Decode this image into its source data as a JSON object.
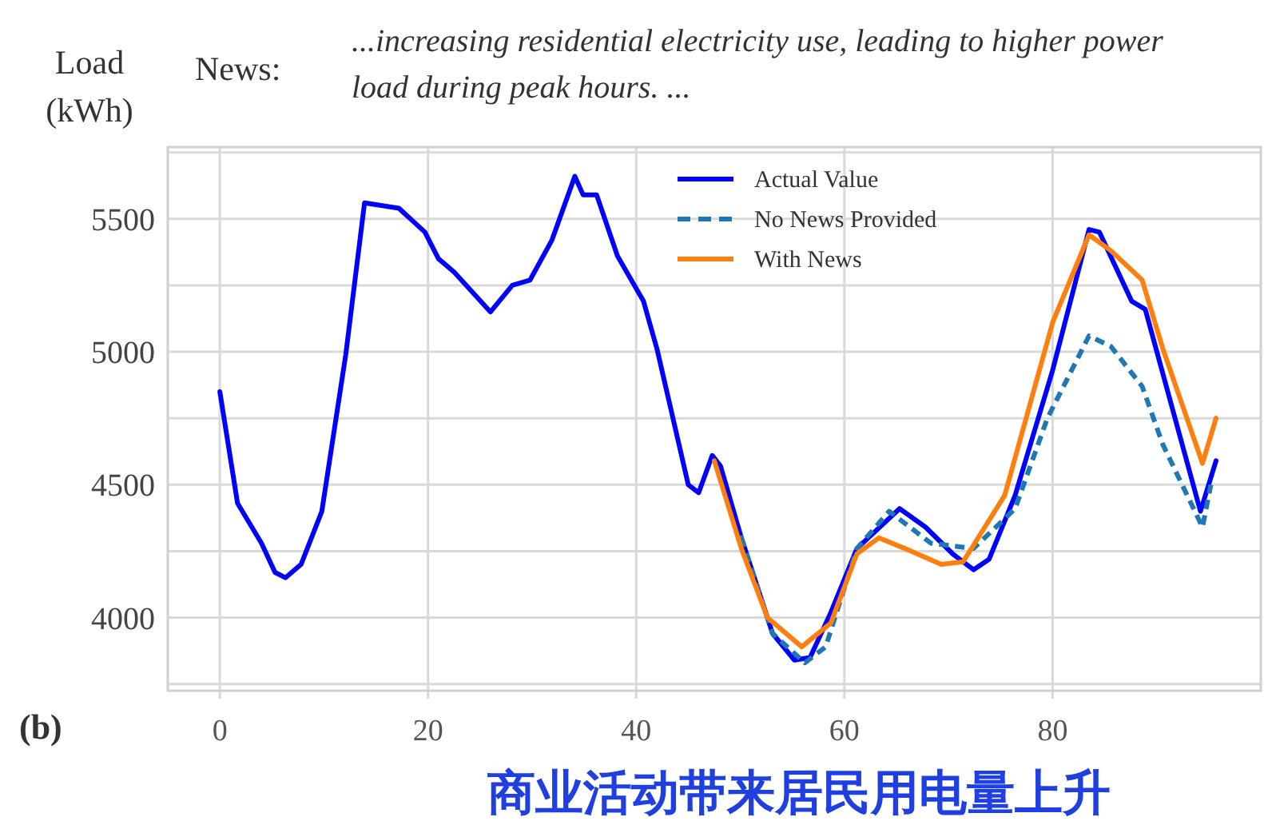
{
  "chart_data": {
    "type": "line",
    "ylabel": "Load (kWh)",
    "annotations": [
      "News:",
      "...increasing residential electricity use, leading to higher power load during peak hours. ...",
      "(b)",
      "商业活动带来居民用电量上升"
    ],
    "xlim": [
      -5,
      100
    ],
    "ylim": [
      3725,
      5770
    ],
    "xticks": [
      0,
      20,
      40,
      60,
      80
    ],
    "yticks": [
      {
        "value": 3750,
        "label": null
      },
      4000,
      {
        "value": 4250,
        "label": null
      },
      4500,
      {
        "value": 4750,
        "label": null
      },
      5000,
      {
        "value": 5250,
        "label": null
      },
      5500,
      {
        "value": 5750,
        "label": null
      }
    ],
    "grid": true,
    "legend": "top right",
    "series": [
      {
        "name": "Actual Value",
        "color": "#0000ff",
        "line_style": "solid",
        "x": [
          0,
          1.7,
          4,
          5.3,
          6.3,
          7.8,
          9.8,
          12.1,
          13.9,
          17.2,
          19.7,
          21,
          22.5,
          26,
          28.1,
          29.8,
          31.9,
          34.1,
          34.9,
          36.2,
          38.2,
          40.7,
          42,
          45,
          46,
          47.3,
          48.1,
          50.1,
          53.1,
          55.2,
          56.7,
          58.7,
          61.2,
          65.3,
          67.8,
          70.4,
          72.4,
          73.9,
          76.4,
          80,
          83.5,
          84.5,
          87.6,
          88.9,
          94.2,
          95.7
        ],
        "values": [
          4850,
          4430,
          4280,
          4170,
          4150,
          4200,
          4400,
          4990,
          5560,
          5540,
          5450,
          5350,
          5300,
          5150,
          5250,
          5270,
          5420,
          5660,
          5590,
          5590,
          5360,
          5190,
          5010,
          4500,
          4470,
          4610,
          4570,
          4300,
          3940,
          3840,
          3850,
          4020,
          4260,
          4410,
          4340,
          4240,
          4180,
          4220,
          4460,
          4930,
          5460,
          5450,
          5190,
          5160,
          4400,
          4590
        ]
      },
      {
        "name": "No News Provided",
        "color": "#1f77b4",
        "line_style": "dashed",
        "x": [
          50.1,
          53.1,
          56.2,
          58.2,
          61.2,
          64.3,
          68.3,
          72.4,
          76.4,
          79.5,
          83.5,
          85.6,
          88.6,
          90.6,
          94.4,
          95.2
        ],
        "values": [
          4300,
          3940,
          3830,
          3890,
          4260,
          4400,
          4280,
          4260,
          4410,
          4750,
          5060,
          5020,
          4870,
          4650,
          4340,
          4500
        ]
      },
      {
        "name": "With News",
        "color": "#ff7f0e",
        "line_style": "solid",
        "x": [
          47.5,
          50.1,
          52.6,
          55.9,
          58.7,
          61.2,
          63.3,
          65.8,
          69.3,
          71.4,
          75.4,
          80,
          83.5,
          85.6,
          88.6,
          90.6,
          94.4,
          95.7
        ],
        "values": [
          4590,
          4260,
          4000,
          3890,
          3980,
          4240,
          4300,
          4260,
          4200,
          4210,
          4460,
          5110,
          5440,
          5380,
          5270,
          5010,
          4580,
          4750
        ]
      }
    ]
  }
}
